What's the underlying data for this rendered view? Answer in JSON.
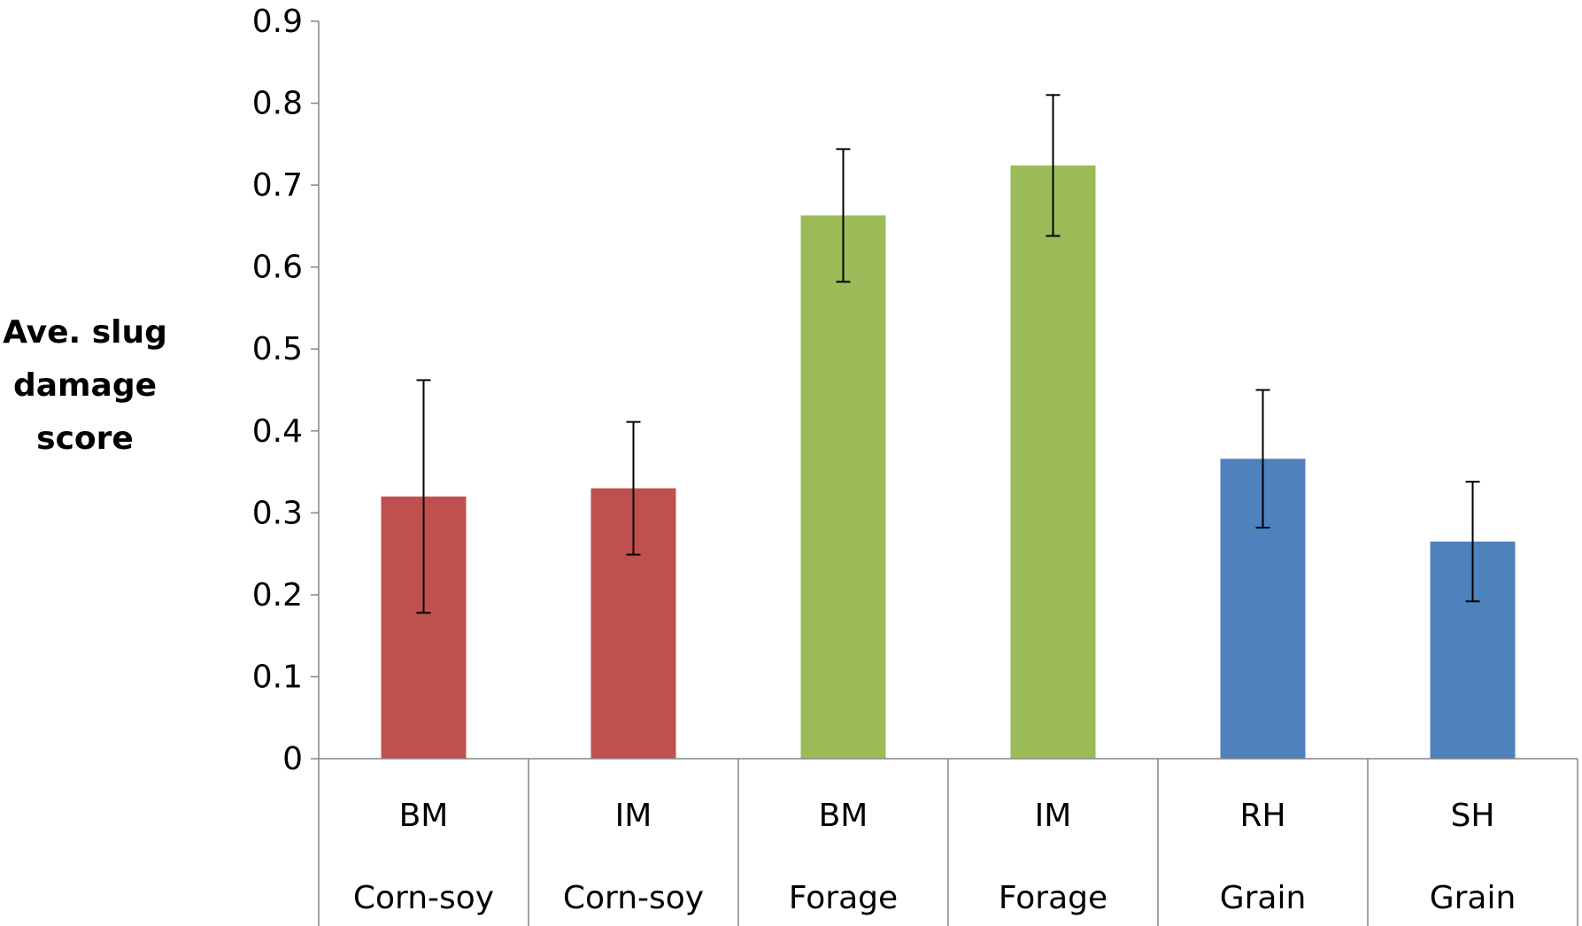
{
  "chart_data": {
    "type": "bar",
    "ylabel_lines": [
      "Ave. slug",
      "damage",
      "score"
    ],
    "ylim": [
      0,
      0.9
    ],
    "yticks": [
      0,
      0.1,
      0.2,
      0.3,
      0.4,
      0.5,
      0.6,
      0.7,
      0.8,
      0.9
    ],
    "ytick_labels": [
      "0",
      "0.1",
      "0.2",
      "0.3",
      "0.4",
      "0.5",
      "0.6",
      "0.7",
      "0.8",
      "0.9"
    ],
    "grid": false,
    "categories": [
      {
        "line1": "BM",
        "line2": "Corn-soy"
      },
      {
        "line1": "IM",
        "line2": "Corn-soy"
      },
      {
        "line1": "BM",
        "line2": "Forage"
      },
      {
        "line1": "IM",
        "line2": "Forage"
      },
      {
        "line1": "RH",
        "line2": "Grain"
      },
      {
        "line1": "SH",
        "line2": "Grain"
      }
    ],
    "values": [
      0.32,
      0.33,
      0.663,
      0.724,
      0.366,
      0.265
    ],
    "errors": [
      0.142,
      0.081,
      0.081,
      0.086,
      0.084,
      0.073
    ],
    "bar_colors": [
      "#C0504D",
      "#C0504D",
      "#9BBB59",
      "#9BBB59",
      "#4F81BD",
      "#4F81BD"
    ]
  }
}
